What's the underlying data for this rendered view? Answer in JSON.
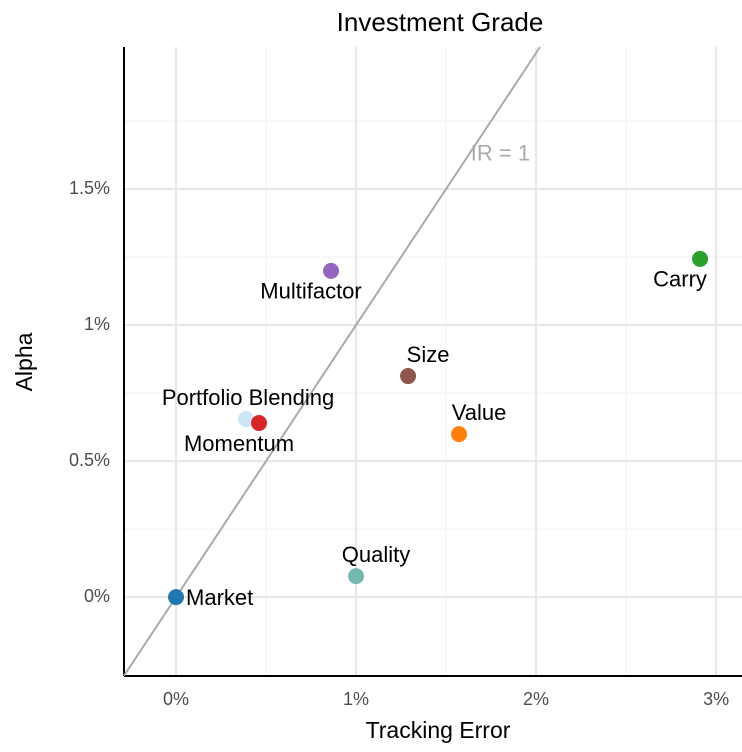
{
  "chart_data": {
    "type": "scatter",
    "title": "Investment Grade",
    "x_label": "Tracking Error",
    "y_label": "Alpha",
    "xlim": [
      -0.289,
      3.144
    ],
    "ylim": [
      -0.29,
      2.022
    ],
    "xticks": [
      {
        "value": 0,
        "label": "0%"
      },
      {
        "value": 1,
        "label": "1%"
      },
      {
        "value": 2,
        "label": "2%"
      },
      {
        "value": 3,
        "label": "3%"
      }
    ],
    "yticks": [
      {
        "value": 0,
        "label": "0%"
      },
      {
        "value": 0.5,
        "label": "0.5%"
      },
      {
        "value": 1,
        "label": "1%"
      },
      {
        "value": 1.5,
        "label": "1.5%"
      }
    ],
    "x_minor_grid": [
      0.5,
      1.5,
      2.5
    ],
    "y_minor_grid": [
      0.25,
      0.75,
      1.25,
      1.75
    ],
    "grid": true,
    "reference_line": {
      "slope": 1,
      "label": "IR = 1",
      "color": "#aaaaaa"
    },
    "series": [
      {
        "name": "Market",
        "color": "#1f77b4",
        "x": 0,
        "y": 0,
        "label_position": "right"
      },
      {
        "name": "Quality",
        "color": "#76b7b2",
        "x": 1.0,
        "y": 0.077,
        "label_position": "above"
      },
      {
        "name": "Portfolio Blending",
        "color": "#cde6f4",
        "x": 0.389,
        "y": 0.654,
        "label_position": "above"
      },
      {
        "name": "Momentum",
        "color": "#d62728",
        "x": 0.461,
        "y": 0.64,
        "label_position": "below"
      },
      {
        "name": "Multifactor",
        "color": "#9467bd",
        "x": 0.861,
        "y": 1.199,
        "label_position": "below"
      },
      {
        "name": "Size",
        "color": "#8c564b",
        "x": 1.289,
        "y": 0.8125,
        "label_position": "above"
      },
      {
        "name": "Value",
        "color": "#ff7f0e",
        "x": 1.572,
        "y": 0.599,
        "label_position": "above"
      },
      {
        "name": "Carry",
        "color": "#2ca02c",
        "x": 2.911,
        "y": 1.243,
        "label_position": "below"
      }
    ]
  }
}
